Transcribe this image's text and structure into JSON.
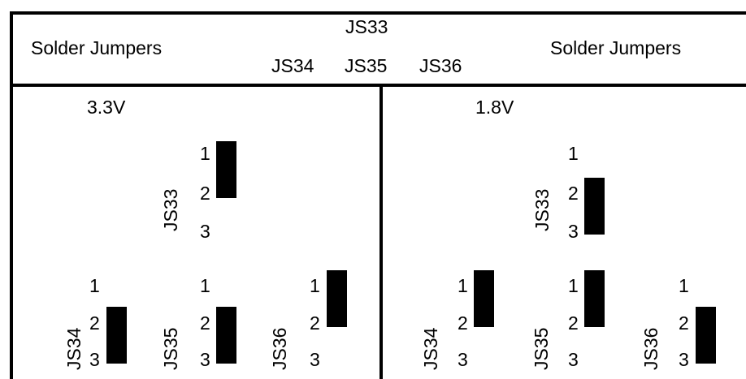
{
  "header": {
    "left_title": "Solder Jumpers",
    "right_title": "Solder Jumpers",
    "top_label": "JS33",
    "bottom_labels": [
      "JS34",
      "JS35",
      "JS36"
    ]
  },
  "left_panel": {
    "voltage": "3.3V",
    "jumpers": [
      {
        "name": "JS33",
        "pins": [
          "1",
          "2",
          "3"
        ],
        "bridged": "1-2"
      },
      {
        "name": "JS34",
        "pins": [
          "1",
          "2",
          "3"
        ],
        "bridged": "2-3"
      },
      {
        "name": "JS35",
        "pins": [
          "1",
          "2",
          "3"
        ],
        "bridged": "2-3"
      },
      {
        "name": "JS36",
        "pins": [
          "1",
          "2",
          "3"
        ],
        "bridged": "1-2"
      }
    ]
  },
  "right_panel": {
    "voltage": "1.8V",
    "jumpers": [
      {
        "name": "JS33",
        "pins": [
          "1",
          "2",
          "3"
        ],
        "bridged": "2-3"
      },
      {
        "name": "JS34",
        "pins": [
          "1",
          "2",
          "3"
        ],
        "bridged": "1-2"
      },
      {
        "name": "JS35",
        "pins": [
          "1",
          "2",
          "3"
        ],
        "bridged": "1-2"
      },
      {
        "name": "JS36",
        "pins": [
          "1",
          "2",
          "3"
        ],
        "bridged": "2-3"
      }
    ]
  }
}
